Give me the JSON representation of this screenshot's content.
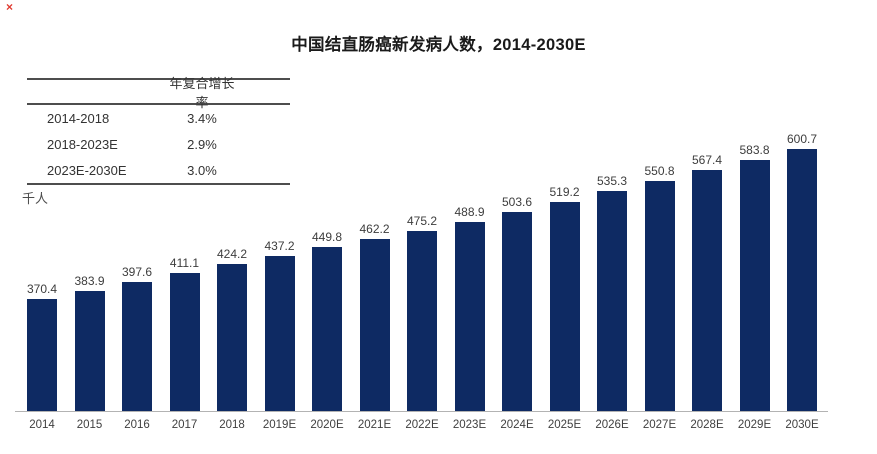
{
  "icons": {
    "red_cross_glyph": "×"
  },
  "title": "中国结直肠癌新发病人数，2014-2030E",
  "cagr_table": {
    "header": "年复合增长率",
    "rows": [
      {
        "period": "2014-2018",
        "value": "3.4%"
      },
      {
        "period": "2018-2023E",
        "value": "2.9%"
      },
      {
        "period": "2023E-2030E",
        "value": "3.0%"
      }
    ]
  },
  "unit_label": "千人",
  "colors": {
    "bar": "#0e2a63",
    "axis": "#b3b3b3",
    "label_text": "#3d3d3d"
  },
  "chart_data": {
    "type": "bar",
    "title": "中国结直肠癌新发病人数，2014-2030E",
    "ylabel": "千人",
    "xlabel": "",
    "categories": [
      "2014",
      "2015",
      "2016",
      "2017",
      "2018",
      "2019E",
      "2020E",
      "2021E",
      "2022E",
      "2023E",
      "2024E",
      "2025E",
      "2026E",
      "2027E",
      "2028E",
      "2029E",
      "2030E"
    ],
    "values": [
      370.4,
      383.9,
      397.6,
      411.1,
      424.2,
      437.2,
      449.8,
      462.2,
      475.2,
      488.9,
      503.6,
      519.2,
      535.3,
      550.8,
      567.4,
      583.8,
      600.7
    ],
    "ylim": [
      200,
      620
    ],
    "grid": false,
    "legend": null,
    "annotations": {
      "cagr_2014_2018": "3.4%",
      "cagr_2018_2023E": "2.9%",
      "cagr_2023E_2030E": "3.0%"
    }
  }
}
